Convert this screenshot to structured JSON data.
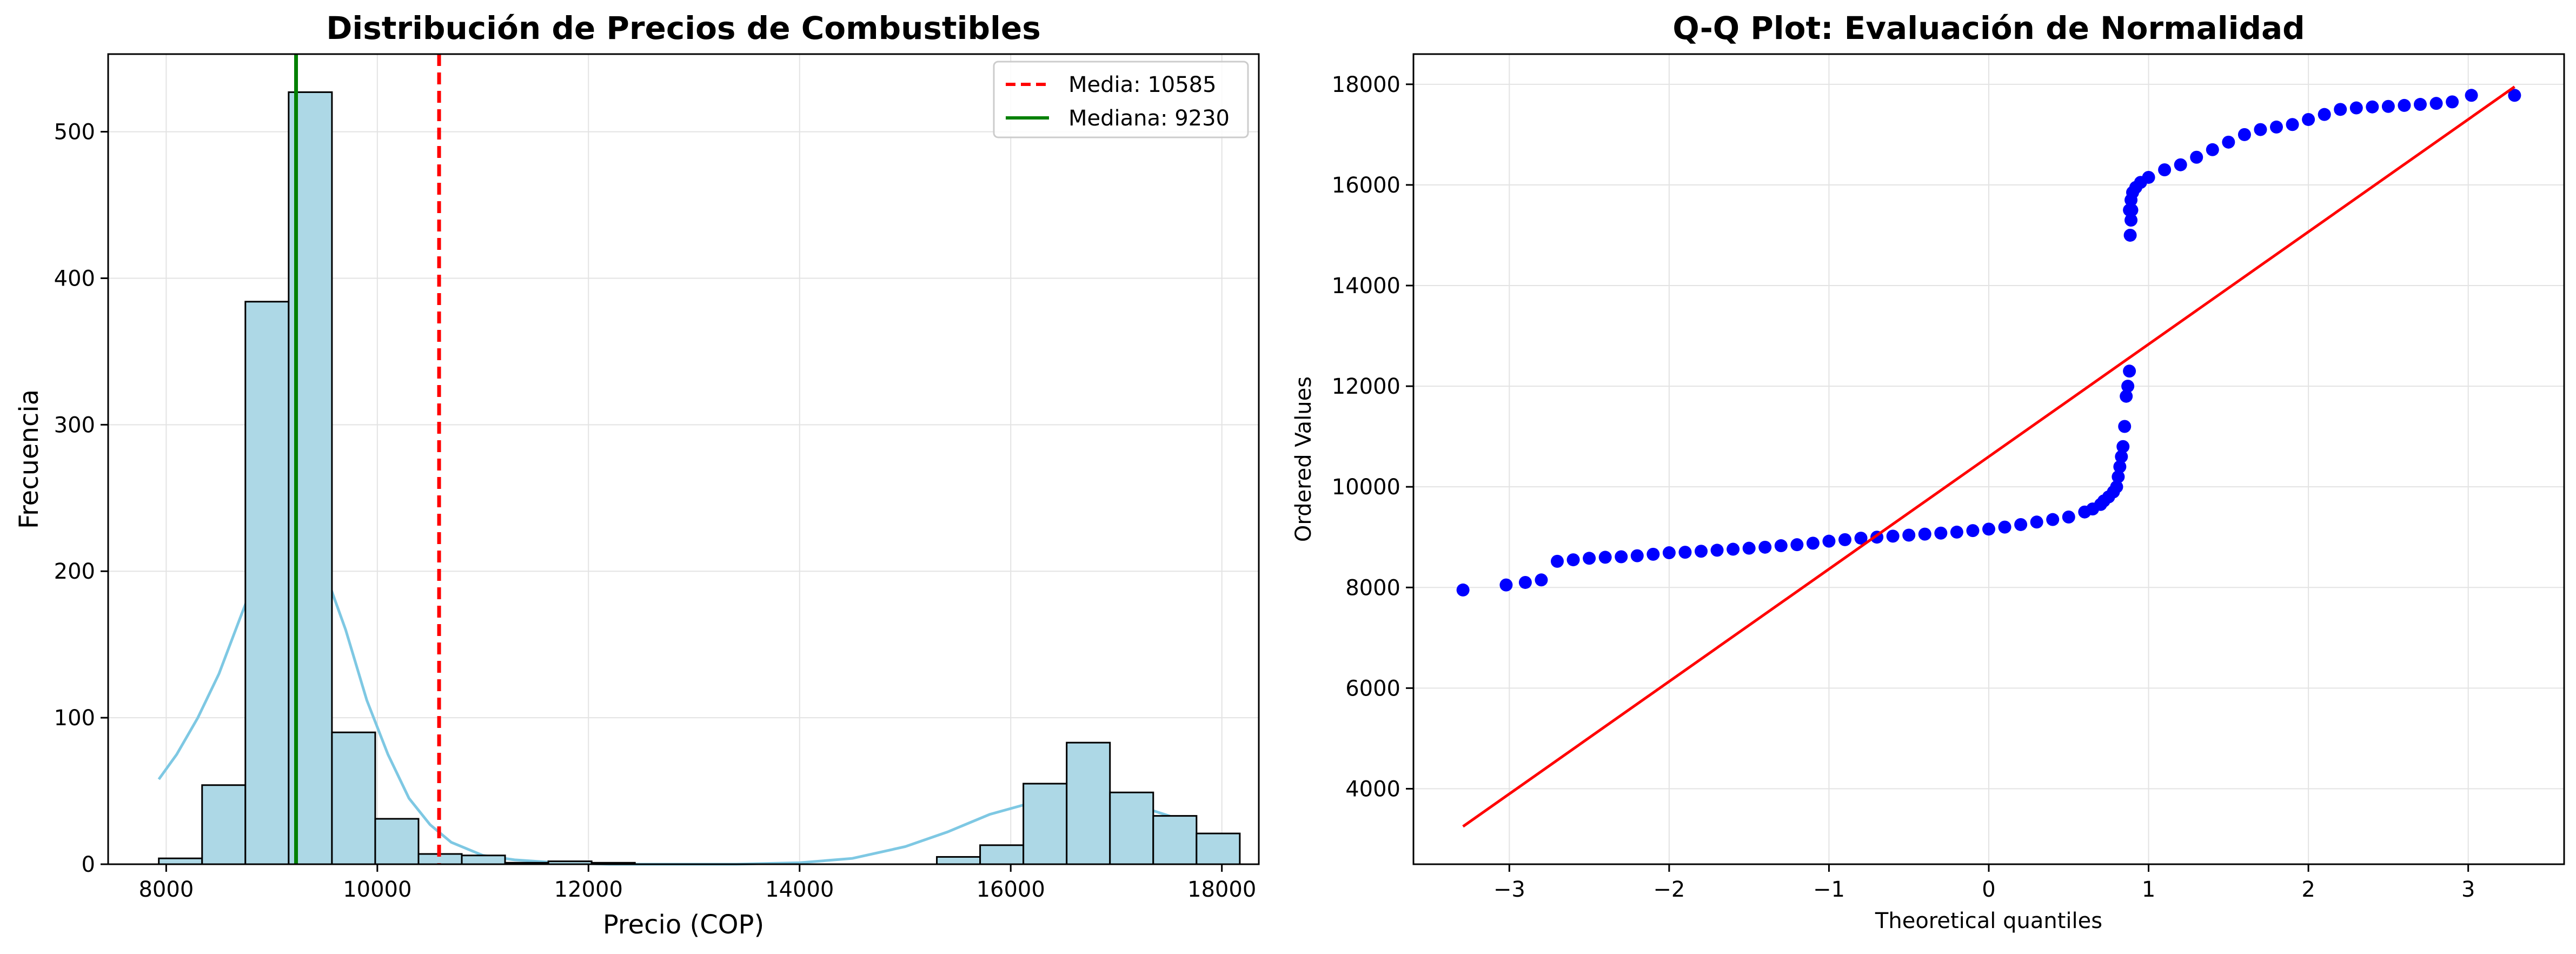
{
  "chart_data": [
    {
      "type": "bar",
      "title": "Distribución de Precios de Combustibles",
      "xlabel": "Precio (COP)",
      "ylabel": "Frecuencia",
      "xlim": [
        7450,
        18350
      ],
      "ylim": [
        0,
        553
      ],
      "xticks": [
        8000,
        10000,
        12000,
        14000,
        16000,
        18000
      ],
      "yticks": [
        0,
        100,
        200,
        300,
        400,
        500
      ],
      "grid": true,
      "legend_position": "top-right",
      "colors": {
        "bar_fill": "#add8e6",
        "bar_edge": "#000000",
        "kde": "#7ec8e3",
        "mean": "#ff0000",
        "median": "#008000"
      },
      "bins": [
        {
          "x0": 7930,
          "x1": 8340,
          "count": 4
        },
        {
          "x0": 8340,
          "x1": 8750,
          "count": 54
        },
        {
          "x0": 8750,
          "x1": 9160,
          "count": 384
        },
        {
          "x0": 9160,
          "x1": 9570,
          "count": 527
        },
        {
          "x0": 9570,
          "x1": 9980,
          "count": 90
        },
        {
          "x0": 9980,
          "x1": 10390,
          "count": 31
        },
        {
          "x0": 10390,
          "x1": 10800,
          "count": 7
        },
        {
          "x0": 10800,
          "x1": 11210,
          "count": 6
        },
        {
          "x0": 11210,
          "x1": 11620,
          "count": 1
        },
        {
          "x0": 11620,
          "x1": 12030,
          "count": 2
        },
        {
          "x0": 12030,
          "x1": 12440,
          "count": 1
        },
        {
          "x0": 15300,
          "x1": 15710,
          "count": 5
        },
        {
          "x0": 15710,
          "x1": 16120,
          "count": 13
        },
        {
          "x0": 16120,
          "x1": 16530,
          "count": 55
        },
        {
          "x0": 16530,
          "x1": 16940,
          "count": 83
        },
        {
          "x0": 16940,
          "x1": 17350,
          "count": 49
        },
        {
          "x0": 17350,
          "x1": 17760,
          "count": 33
        },
        {
          "x0": 17760,
          "x1": 18170,
          "count": 21
        }
      ],
      "kde": {
        "x": [
          7930,
          8100,
          8300,
          8500,
          8700,
          8900,
          9100,
          9200,
          9300,
          9500,
          9700,
          9900,
          10100,
          10300,
          10500,
          10700,
          11000,
          11300,
          11700,
          12200,
          12800,
          13400,
          14000,
          14500,
          15000,
          15400,
          15800,
          16200,
          16600,
          16900,
          17200,
          17500,
          17760
        ],
        "y": [
          58,
          75,
          100,
          130,
          168,
          205,
          228,
          231,
          226,
          200,
          160,
          112,
          75,
          45,
          27,
          15,
          6,
          3,
          1,
          0,
          0,
          0,
          1,
          4,
          12,
          22,
          34,
          42,
          46,
          45,
          40,
          33,
          25
        ]
      },
      "mean": {
        "value": 10585,
        "label": "Media: 10585"
      },
      "median": {
        "value": 9230,
        "label": "Mediana: 9230"
      }
    },
    {
      "type": "scatter",
      "title": "Q-Q Plot: Evaluación de Normalidad",
      "xlabel": "Theoretical quantiles",
      "ylabel": "Ordered Values",
      "xlim": [
        -3.6,
        3.6
      ],
      "ylim": [
        2500,
        18600
      ],
      "xticks": [
        -3,
        -2,
        -1,
        0,
        1,
        2,
        3
      ],
      "yticks": [
        4000,
        6000,
        8000,
        10000,
        12000,
        14000,
        16000,
        18000
      ],
      "grid": true,
      "colors": {
        "points": "#0000ff",
        "line": "#ff0000"
      },
      "points": {
        "x": [
          -3.29,
          -3.02,
          -2.9,
          -2.8,
          -2.7,
          -2.6,
          -2.5,
          -2.4,
          -2.3,
          -2.2,
          -2.1,
          -2.0,
          -1.9,
          -1.8,
          -1.7,
          -1.6,
          -1.5,
          -1.4,
          -1.3,
          -1.2,
          -1.1,
          -1.0,
          -0.9,
          -0.8,
          -0.7,
          -0.6,
          -0.5,
          -0.4,
          -0.3,
          -0.2,
          -0.1,
          0.0,
          0.1,
          0.2,
          0.3,
          0.4,
          0.5,
          0.6,
          0.65,
          0.7,
          0.72,
          0.75,
          0.78,
          0.8,
          0.81,
          0.82,
          0.83,
          0.84,
          0.85,
          0.86,
          0.87,
          0.88,
          0.885,
          0.89,
          0.895,
          0.88,
          0.89,
          0.9,
          0.92,
          0.95,
          1.0,
          1.1,
          1.2,
          1.3,
          1.4,
          1.5,
          1.6,
          1.7,
          1.8,
          1.9,
          2.0,
          2.1,
          2.2,
          2.3,
          2.4,
          2.5,
          2.6,
          2.7,
          2.8,
          2.9,
          3.02,
          3.29
        ],
        "y": [
          7950,
          8050,
          8100,
          8150,
          8520,
          8550,
          8580,
          8600,
          8610,
          8630,
          8660,
          8690,
          8700,
          8720,
          8740,
          8760,
          8780,
          8800,
          8830,
          8850,
          8880,
          8920,
          8950,
          8980,
          9000,
          9020,
          9040,
          9060,
          9080,
          9100,
          9130,
          9160,
          9200,
          9250,
          9300,
          9350,
          9400,
          9500,
          9560,
          9650,
          9720,
          9800,
          9900,
          10000,
          10200,
          10400,
          10600,
          10800,
          11200,
          11800,
          12000,
          12300,
          15000,
          15300,
          15500,
          15500,
          15700,
          15850,
          15950,
          16050,
          16150,
          16300,
          16400,
          16550,
          16700,
          16850,
          17000,
          17100,
          17150,
          17200,
          17300,
          17400,
          17500,
          17530,
          17550,
          17560,
          17580,
          17600,
          17620,
          17650,
          17780,
          17780
        ]
      },
      "fit_line": {
        "x": [
          -3.29,
          3.29
        ],
        "y": [
          3250,
          17950
        ]
      }
    }
  ]
}
